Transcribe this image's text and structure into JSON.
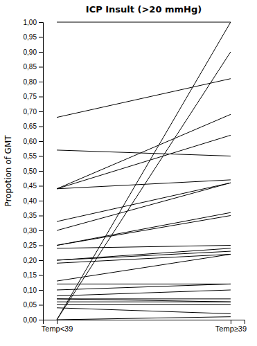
{
  "chart_data": {
    "type": "slope",
    "title": "ICP Insult (>20 mmHg)",
    "ylabel": "Propotion of GMT",
    "categories": [
      "Temp<39",
      "Temp≥39"
    ],
    "color": "#000000",
    "grid": false,
    "ylim": [
      0.0,
      1.0
    ],
    "yticks": [
      {
        "value": 0.0,
        "label": "0,00"
      },
      {
        "value": 0.05,
        "label": "0,05"
      },
      {
        "value": 0.1,
        "label": "0,10"
      },
      {
        "value": 0.15,
        "label": "0,15"
      },
      {
        "value": 0.2,
        "label": "0,20"
      },
      {
        "value": 0.25,
        "label": "0,25"
      },
      {
        "value": 0.3,
        "label": "0,30"
      },
      {
        "value": 0.35,
        "label": "0,35"
      },
      {
        "value": 0.4,
        "label": "0,40"
      },
      {
        "value": 0.45,
        "label": "0,45"
      },
      {
        "value": 0.5,
        "label": "0,50"
      },
      {
        "value": 0.55,
        "label": "0,55"
      },
      {
        "value": 0.6,
        "label": "0,60"
      },
      {
        "value": 0.65,
        "label": "0,65"
      },
      {
        "value": 0.7,
        "label": "0,70"
      },
      {
        "value": 0.75,
        "label": "0,75"
      },
      {
        "value": 0.8,
        "label": "0,80"
      },
      {
        "value": 0.85,
        "label": "0,85"
      },
      {
        "value": 0.9,
        "label": "0,90"
      },
      {
        "value": 0.95,
        "label": "0,95"
      },
      {
        "value": 1.0,
        "label": "1,00"
      }
    ],
    "series": [
      {
        "values": [
          0.0,
          1.0
        ]
      },
      {
        "values": [
          0.0,
          0.9
        ]
      },
      {
        "values": [
          0.68,
          0.81
        ]
      },
      {
        "values": [
          0.57,
          0.55
        ]
      },
      {
        "values": [
          0.44,
          0.69
        ]
      },
      {
        "values": [
          0.44,
          0.62
        ]
      },
      {
        "values": [
          0.44,
          0.47
        ]
      },
      {
        "values": [
          0.33,
          0.46
        ]
      },
      {
        "values": [
          0.3,
          0.46
        ]
      },
      {
        "values": [
          0.25,
          0.36
        ]
      },
      {
        "values": [
          0.25,
          0.35
        ]
      },
      {
        "values": [
          0.24,
          0.25
        ]
      },
      {
        "values": [
          0.2,
          0.24
        ]
      },
      {
        "values": [
          0.2,
          0.23
        ]
      },
      {
        "values": [
          0.19,
          0.22
        ]
      },
      {
        "values": [
          0.13,
          0.22
        ]
      },
      {
        "values": [
          0.12,
          0.12
        ]
      },
      {
        "values": [
          0.1,
          0.12
        ]
      },
      {
        "values": [
          0.08,
          0.1
        ]
      },
      {
        "values": [
          0.07,
          0.07
        ]
      },
      {
        "values": [
          0.07,
          0.06
        ]
      },
      {
        "values": [
          0.06,
          0.06
        ]
      },
      {
        "values": [
          0.05,
          0.05
        ]
      },
      {
        "values": [
          0.04,
          0.02
        ]
      },
      {
        "values": [
          0.0,
          0.01
        ]
      }
    ]
  }
}
